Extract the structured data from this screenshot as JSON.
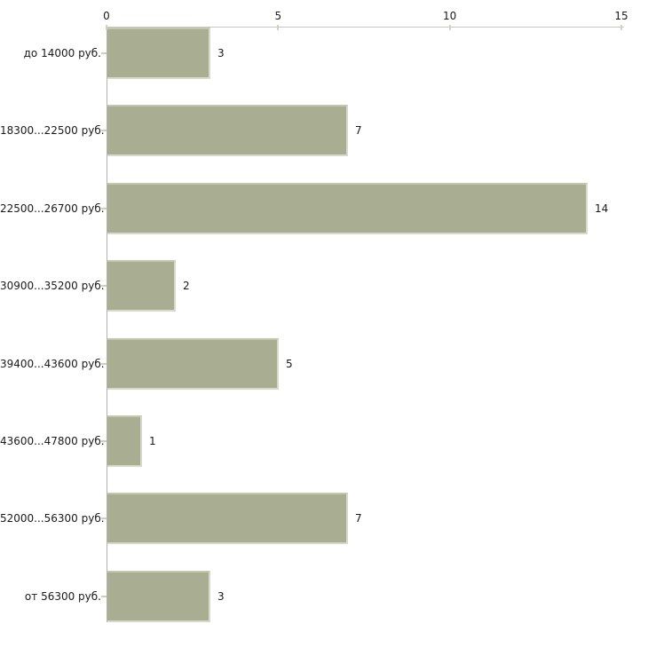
{
  "chart_data": {
    "type": "bar",
    "orientation": "horizontal",
    "title": "",
    "xlabel": "",
    "ylabel": "",
    "categories": [
      "до 14000 руб.",
      "18300...22500 руб.",
      "22500...26700 руб.",
      "30900...35200 руб.",
      "39400...43600 руб.",
      "43600...47800 руб.",
      "52000...56300 руб.",
      "от 56300 руб."
    ],
    "values": [
      3,
      7,
      14,
      2,
      5,
      1,
      7,
      3
    ],
    "value_labels": [
      "3",
      "7",
      "14",
      "2",
      "5",
      "1",
      "7",
      "3"
    ],
    "xlim": [
      0,
      15
    ],
    "x_ticks": [
      0,
      5,
      10,
      15
    ],
    "x_tick_labels": [
      "0",
      "5",
      "10",
      "15"
    ],
    "axis_position": "top",
    "grid": false,
    "legend": false,
    "colors": {
      "bar_fill": "#a9ae92",
      "bar_edge_light": "#d8dac9",
      "bar_edge_top": "#c3c7ad",
      "axis_line": "#c6c6c6",
      "tick_mark": "#d2d4ba",
      "text": "#1a1a1a",
      "background": "#ffffff"
    }
  }
}
